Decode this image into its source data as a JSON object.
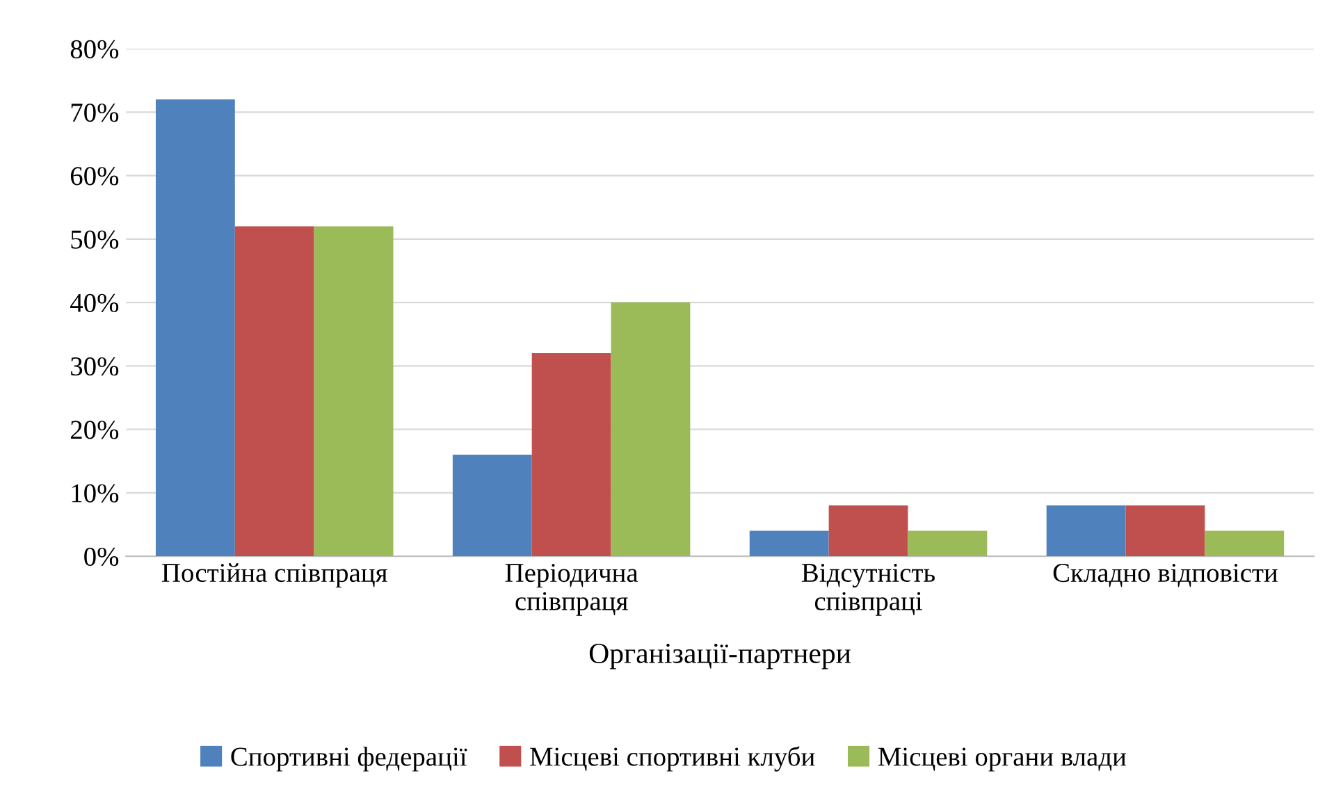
{
  "chart_data": {
    "type": "bar",
    "xlabel": "Організації-партнери",
    "categories": [
      "Постійна співпраця",
      "Періодична\nспівпраця",
      "Відсутність\nспівпраці",
      "Складно відповісти"
    ],
    "series": [
      {
        "name": "Спортивні федерації",
        "color": "#4f81bd",
        "values": [
          72,
          16,
          4,
          8
        ]
      },
      {
        "name": "Місцеві спортивні клуби",
        "color": "#c0504d",
        "values": [
          52,
          32,
          8,
          8
        ]
      },
      {
        "name": "Місцеві органи влади",
        "color": "#9bbb59",
        "values": [
          52,
          40,
          4,
          4
        ]
      }
    ],
    "ylim": [
      0,
      80
    ],
    "yticks": [
      {
        "value": 0,
        "label": "0%"
      },
      {
        "value": 10,
        "label": "10%"
      },
      {
        "value": 20,
        "label": "20%"
      },
      {
        "value": 30,
        "label": "30%"
      },
      {
        "value": 40,
        "label": "40%"
      },
      {
        "value": 50,
        "label": "50%"
      },
      {
        "value": 60,
        "label": "60%"
      },
      {
        "value": 70,
        "label": "70%"
      },
      {
        "value": 80,
        "label": "80%"
      }
    ],
    "grid": "y",
    "legend": "bottom"
  }
}
